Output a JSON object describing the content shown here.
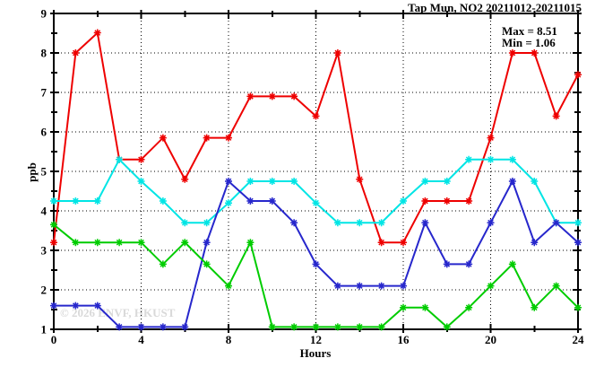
{
  "title": "Tap Mun, NO2 20211012-20211015",
  "annotations": {
    "max_label": "Max = 8.51",
    "min_label": "Min = 1.06"
  },
  "watermark": "© 2026 ENVF, HKUST",
  "colors": {
    "background": "#ffffff",
    "axis": "#000000",
    "grid": "#000000",
    "watermark": "#d9d9d9",
    "red": "#ee0000",
    "cyan": "#00e5e5",
    "blue": "#2727cc",
    "green": "#00cc00"
  },
  "chart_data": {
    "type": "line",
    "title": "Tap Mun, NO2 20211012-20211015",
    "xlabel": "Hours",
    "ylabel": "ppb",
    "xlim": [
      0,
      24
    ],
    "ylim": [
      1,
      9
    ],
    "xticks_major": [
      0,
      4,
      8,
      12,
      16,
      20,
      24
    ],
    "xtick_minor_step": 2,
    "yticks_major": [
      1,
      2,
      3,
      4,
      5,
      6,
      7,
      8,
      9
    ],
    "ytick_minor_step": 0.5,
    "grid": true,
    "grid_x_at": [
      4,
      8,
      12,
      16,
      20
    ],
    "grid_y_at": [
      2,
      3,
      4,
      5,
      6,
      7,
      8
    ],
    "legend_position": "top-right-inside",
    "stats": {
      "max": 8.51,
      "min": 1.06
    },
    "marker": "asterisk",
    "x": [
      0,
      1,
      2,
      3,
      4,
      5,
      6,
      7,
      8,
      9,
      10,
      11,
      12,
      13,
      14,
      15,
      16,
      17,
      18,
      19,
      20,
      21,
      22,
      23,
      24
    ],
    "series": [
      {
        "name": "red-line",
        "color": "#ee0000",
        "values": [
          3.2,
          8.0,
          8.51,
          5.3,
          5.3,
          5.85,
          4.8,
          5.85,
          5.85,
          6.9,
          6.9,
          6.9,
          6.4,
          8.0,
          4.8,
          3.2,
          3.2,
          4.25,
          4.25,
          4.25,
          5.85,
          8.0,
          8.0,
          6.4,
          7.45
        ]
      },
      {
        "name": "cyan-line",
        "color": "#00e5e5",
        "values": [
          4.25,
          4.25,
          4.25,
          5.3,
          4.75,
          4.25,
          3.7,
          3.7,
          4.2,
          4.75,
          4.75,
          4.75,
          4.2,
          3.7,
          3.7,
          3.7,
          4.25,
          4.75,
          4.75,
          5.3,
          5.3,
          5.3,
          4.75,
          3.7,
          3.7
        ]
      },
      {
        "name": "blue-line",
        "color": "#2727cc",
        "values": [
          1.6,
          1.6,
          1.6,
          1.06,
          1.06,
          1.06,
          1.06,
          3.2,
          4.75,
          4.25,
          4.25,
          3.7,
          2.65,
          2.1,
          2.1,
          2.1,
          2.1,
          3.7,
          2.65,
          2.65,
          3.7,
          4.75,
          3.2,
          3.7,
          3.2
        ]
      },
      {
        "name": "green-line",
        "color": "#00cc00",
        "values": [
          3.65,
          3.2,
          3.2,
          3.2,
          3.2,
          2.65,
          3.2,
          2.65,
          2.1,
          3.2,
          1.06,
          1.06,
          1.06,
          1.06,
          1.06,
          1.06,
          1.55,
          1.55,
          1.06,
          1.55,
          2.1,
          2.65,
          1.55,
          2.1,
          1.55
        ]
      }
    ]
  }
}
